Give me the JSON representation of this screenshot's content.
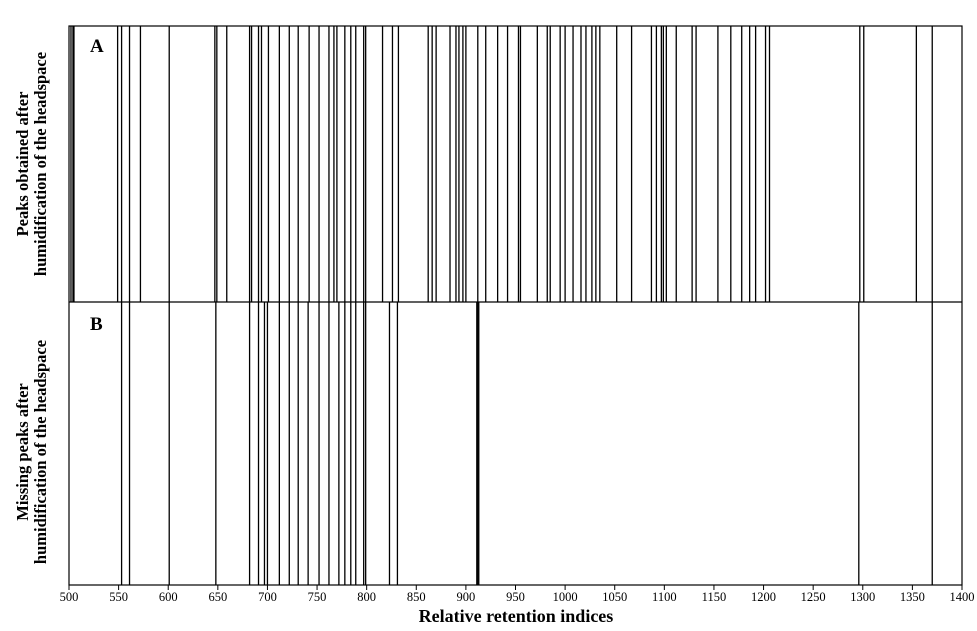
{
  "chart_data": {
    "type": "stripe",
    "xlabel": "Relative retention indices",
    "xlim": [
      500,
      1400
    ],
    "xticks": [
      500,
      550,
      600,
      650,
      700,
      750,
      800,
      850,
      900,
      950,
      1000,
      1050,
      1100,
      1150,
      1200,
      1250,
      1300,
      1350,
      1400
    ],
    "grid": false,
    "panels": [
      {
        "letter": "A",
        "ylabel_lines": [
          "Peaks obtained after",
          "humidification of the headspace"
        ],
        "values": [
          502,
          504,
          505,
          549,
          553,
          561,
          572,
          601,
          647,
          649,
          659,
          682,
          684,
          691,
          694,
          701,
          712,
          722,
          731,
          742,
          752,
          762,
          767,
          770,
          778,
          784,
          789,
          797,
          799,
          816,
          826,
          832,
          862,
          866,
          870,
          884,
          890,
          893,
          897,
          900,
          912,
          920,
          932,
          942,
          953,
          955,
          972,
          982,
          985,
          995,
          1000,
          1008,
          1016,
          1021,
          1027,
          1031,
          1035,
          1052,
          1067,
          1087,
          1092,
          1097,
          1099,
          1102,
          1112,
          1128,
          1132,
          1154,
          1167,
          1178,
          1186,
          1192,
          1202,
          1206,
          1297,
          1301,
          1354,
          1370
        ]
      },
      {
        "letter": "B",
        "ylabel_lines": [
          "Missing peaks after",
          "humidification of the headspace"
        ],
        "values": [
          553,
          561,
          601,
          648,
          682,
          691,
          697,
          700,
          712,
          722,
          731,
          741,
          752,
          762,
          772,
          778,
          784,
          789,
          797,
          799,
          823,
          831,
          911,
          912,
          913,
          1296,
          1370
        ]
      }
    ]
  }
}
